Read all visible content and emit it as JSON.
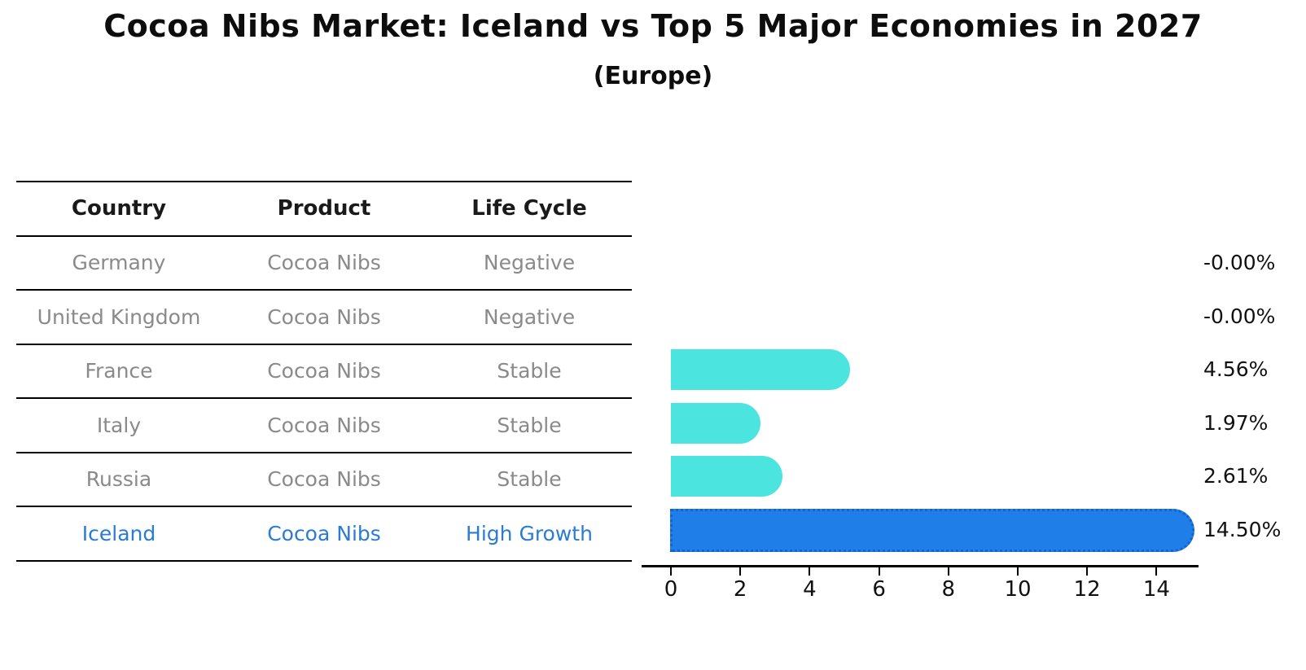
{
  "title": "Cocoa Nibs Market: Iceland vs Top 5 Major Economies in 2027",
  "subtitle": "(Europe)",
  "table": {
    "headers": [
      "Country",
      "Product",
      "Life Cycle"
    ],
    "rows": [
      {
        "country": "Germany",
        "product": "Cocoa Nibs",
        "life_cycle": "Negative",
        "highlight": false
      },
      {
        "country": "United Kingdom",
        "product": "Cocoa Nibs",
        "life_cycle": "Negative",
        "highlight": false
      },
      {
        "country": "France",
        "product": "Cocoa Nibs",
        "life_cycle": "Stable",
        "highlight": false
      },
      {
        "country": "Italy",
        "product": "Cocoa Nibs",
        "life_cycle": "Stable",
        "highlight": false
      },
      {
        "country": "Russia",
        "product": "Cocoa Nibs",
        "life_cycle": "Stable",
        "highlight": false
      },
      {
        "country": "Iceland",
        "product": "Cocoa Nibs",
        "life_cycle": "High Growth",
        "highlight": true
      }
    ]
  },
  "chart_data": {
    "type": "bar",
    "orientation": "horizontal",
    "title": "Cocoa Nibs Market: Iceland vs Top 5 Major Economies in 2027",
    "subtitle": "(Europe)",
    "categories": [
      "Germany",
      "United Kingdom",
      "France",
      "Italy",
      "Russia",
      "Iceland"
    ],
    "values": [
      -0.0,
      -0.0,
      4.56,
      1.97,
      2.61,
      14.5
    ],
    "value_labels": [
      "-0.00%",
      "-0.00%",
      "4.56%",
      "1.97%",
      "2.61%",
      "14.50%"
    ],
    "x_ticks": [
      0,
      2,
      4,
      6,
      8,
      10,
      12,
      14
    ],
    "xlim": [
      0,
      15.2
    ],
    "grid": false,
    "legend": false,
    "bar_color": "#4BE4DF",
    "highlight_bar_color": "#1F7EE8",
    "highlight_border_color": "#1462CC",
    "highlight_index": 5
  },
  "colors": {
    "background": "#FFFFFF",
    "title_text": "#0D0D0D",
    "table_header_text": "#1A1A1A",
    "table_cell_text": "#8A8A8A",
    "table_line": "#000000",
    "highlight_text": "#2B7BD5",
    "axis": "#000000",
    "value_label_text": "#111111"
  }
}
